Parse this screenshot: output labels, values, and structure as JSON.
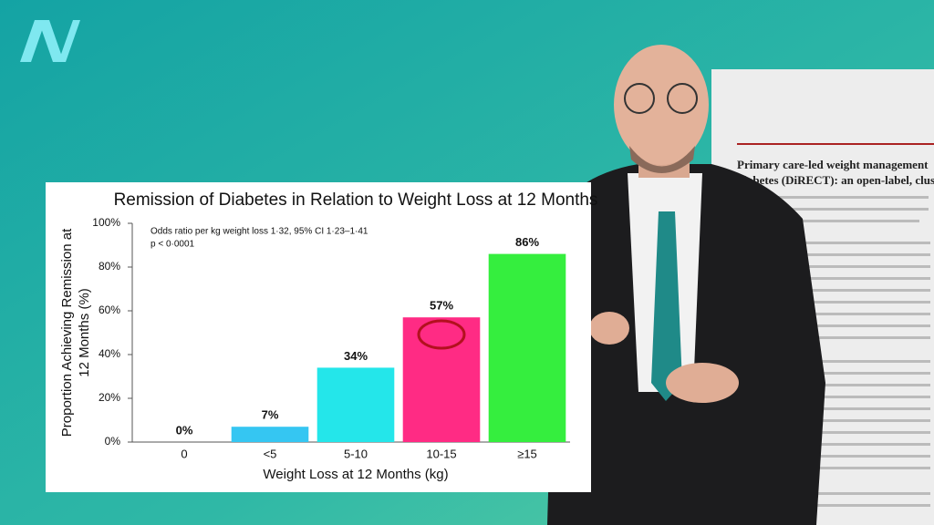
{
  "chart_data": {
    "type": "bar",
    "title": "Remission of Diabetes in Relation to Weight Loss at 12 Months",
    "xlabel": "Weight Loss at 12 Months (kg)",
    "ylabel": [
      "Proportion Achieving Remission at",
      "12 Months (%)"
    ],
    "annotations": [
      "Odds ratio per kg weight loss 1·32, 95% CI 1·23–1·41",
      "p < 0·0001"
    ],
    "categories": [
      "0",
      "<5",
      "5-10",
      "10-15",
      "≥15"
    ],
    "values": [
      0,
      7,
      34,
      57,
      86
    ],
    "value_labels": [
      "0%",
      "7%",
      "34%",
      "57%",
      "86%"
    ],
    "colors": [
      "#22e0e8",
      "#35c6f2",
      "#24e6ea",
      "#ff2b84",
      "#35ee3e"
    ],
    "ylim": [
      0,
      100
    ],
    "yticks": [
      {
        "value": 0,
        "label": "0%"
      },
      {
        "value": 20,
        "label": "20%"
      },
      {
        "value": 40,
        "label": "40%"
      },
      {
        "value": 60,
        "label": "60%"
      },
      {
        "value": 80,
        "label": "80%"
      },
      {
        "value": 100,
        "label": "100%"
      }
    ]
  },
  "background_document": {
    "title_lines": [
      "Primary care-led weight management",
      "diabetes (DiRECT): an open-label, clust"
    ]
  }
}
